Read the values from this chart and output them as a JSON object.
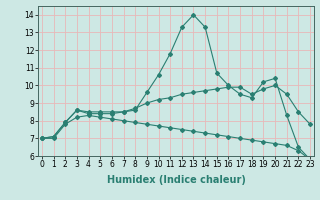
{
  "xlabel": "Humidex (Indice chaleur)",
  "line1_x": [
    0,
    1,
    2,
    3,
    4,
    5,
    6,
    7,
    8,
    9,
    10,
    11,
    12,
    13,
    14,
    15,
    16,
    17,
    18,
    19,
    20,
    21,
    22,
    23
  ],
  "line1_y": [
    7.0,
    7.1,
    7.9,
    8.6,
    8.5,
    8.5,
    8.5,
    8.5,
    8.6,
    9.6,
    10.6,
    11.8,
    13.3,
    14.0,
    13.3,
    10.7,
    10.0,
    9.5,
    9.3,
    10.2,
    10.4,
    8.3,
    6.5,
    5.8
  ],
  "line2_x": [
    0,
    1,
    2,
    3,
    4,
    5,
    6,
    7,
    8,
    9,
    10,
    11,
    12,
    13,
    14,
    15,
    16,
    17,
    18,
    19,
    20,
    21,
    22,
    23
  ],
  "line2_y": [
    7.0,
    7.1,
    7.9,
    8.6,
    8.4,
    8.4,
    8.4,
    8.5,
    8.7,
    9.0,
    9.2,
    9.3,
    9.5,
    9.6,
    9.7,
    9.8,
    9.9,
    9.9,
    9.5,
    9.8,
    10.0,
    9.5,
    8.5,
    7.8
  ],
  "line3_x": [
    0,
    1,
    2,
    3,
    4,
    5,
    6,
    7,
    8,
    9,
    10,
    11,
    12,
    13,
    14,
    15,
    16,
    17,
    18,
    19,
    20,
    21,
    22,
    23
  ],
  "line3_y": [
    7.0,
    7.0,
    7.8,
    8.2,
    8.3,
    8.2,
    8.1,
    8.0,
    7.9,
    7.8,
    7.7,
    7.6,
    7.5,
    7.4,
    7.3,
    7.2,
    7.1,
    7.0,
    6.9,
    6.8,
    6.7,
    6.6,
    6.3,
    5.8
  ],
  "line_color": "#2a7f72",
  "marker": "D",
  "marker_size": 2,
  "xlim": [
    0,
    23
  ],
  "ylim": [
    6,
    14.5
  ],
  "yticks": [
    6,
    7,
    8,
    9,
    10,
    11,
    12,
    13,
    14
  ],
  "xticks": [
    0,
    1,
    2,
    3,
    4,
    5,
    6,
    7,
    8,
    9,
    10,
    11,
    12,
    13,
    14,
    15,
    16,
    17,
    18,
    19,
    20,
    21,
    22,
    23
  ],
  "bg_color": "#cde8e4",
  "grid_color": "#e8b8b8",
  "tick_label_fontsize": 5.5,
  "xlabel_fontsize": 7,
  "line_width": 0.8
}
